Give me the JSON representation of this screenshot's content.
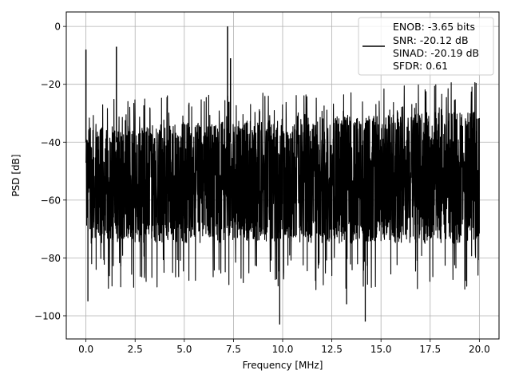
{
  "chart_data": {
    "type": "line",
    "title": "",
    "xlabel": "Frequency [MHz]",
    "ylabel": "PSD [dB]",
    "xlim": [
      -1.0,
      21.0
    ],
    "ylim": [
      -108,
      5
    ],
    "grid": true,
    "x_ticks": [
      0.0,
      2.5,
      5.0,
      7.5,
      10.0,
      12.5,
      15.0,
      17.5,
      20.0
    ],
    "x_tick_labels": [
      "0.0",
      "2.5",
      "5.0",
      "7.5",
      "10.0",
      "12.5",
      "15.0",
      "17.5",
      "20.0"
    ],
    "y_ticks": [
      0,
      -20,
      -40,
      -60,
      -80,
      -100
    ],
    "y_tick_labels": [
      "0",
      "−20",
      "−40",
      "−60",
      "−80",
      "−100"
    ],
    "legend_position": "top-right",
    "legend_lines": [
      "ENOB: -3.65 bits",
      "SNR: -20.12 dB",
      "SINAD: -20.19 dB",
      "SFDR: 0.61"
    ],
    "series": [
      {
        "color": "#000000",
        "description": "dense noisy PSD trace",
        "noise_floor_db": [
          -75,
          -35
        ],
        "spurs": [
          {
            "x": 0.0,
            "y": -8
          },
          {
            "x": 1.55,
            "y": -7
          },
          {
            "x": 7.2,
            "y": 0
          },
          {
            "x": 7.35,
            "y": -11
          }
        ],
        "dips": [
          {
            "x": 0.1,
            "y": -95
          },
          {
            "x": 9.85,
            "y": -103
          },
          {
            "x": 14.2,
            "y": -102
          },
          {
            "x": 13.25,
            "y": -96
          }
        ]
      }
    ]
  }
}
